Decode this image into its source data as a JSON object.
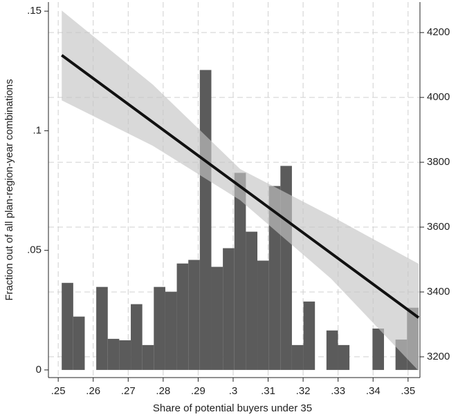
{
  "chart_data": {
    "type": "histogram",
    "xlabel": "Share of potential buyers under 35",
    "ylabel": "Fraction out of all plan-region-year combinations",
    "bins": [
      0.251,
      0.25429,
      0.25758,
      0.26087,
      0.26416,
      0.26745,
      0.27074,
      0.27403,
      0.27732,
      0.28061,
      0.2839,
      0.28719,
      0.29048,
      0.29377,
      0.29706,
      0.30035,
      0.30364,
      0.30693,
      0.31022,
      0.31351,
      0.3168,
      0.32009,
      0.32338,
      0.32667,
      0.32996,
      0.33325,
      0.33654,
      0.33983,
      0.34312,
      0.34641,
      0.3497,
      0.35299
    ],
    "counts": [
      0.0364,
      0.0223,
      0,
      0.0347,
      0.013,
      0.0124,
      0.0275,
      0.0104,
      0.0347,
      0.0327,
      0.0445,
      0.046,
      0.1254,
      0.0431,
      0.0509,
      0.0824,
      0.0578,
      0.0457,
      0.0769,
      0.0853,
      0.0104,
      0.0286,
      0,
      0.0165,
      0.0104,
      0,
      0,
      0.0173,
      0,
      0.0127,
      0.026
    ],
    "color": "#5b5b5b",
    "fit": {
      "x": [
        0.251,
        0.353
      ],
      "values": [
        4130,
        3321
      ],
      "axis": "y2",
      "color": "#111111"
    },
    "ci": {
      "x": [
        0.251,
        0.277,
        0.302,
        0.328,
        0.353
      ],
      "lower": [
        3991,
        3851,
        3683,
        3441,
        3157
      ],
      "upper": [
        4268,
        4040,
        3779,
        3634,
        3487
      ],
      "color": "#c4c4c4"
    },
    "xlim": [
      0.2472,
      0.3534
    ],
    "ylim": [
      -0.0032,
      0.1538
    ],
    "y2lim": [
      3136,
      4294
    ],
    "xticks": [
      {
        "value": 0.25,
        "label": ".25"
      },
      {
        "value": 0.26,
        "label": ".26"
      },
      {
        "value": 0.27,
        "label": ".27"
      },
      {
        "value": 0.28,
        "label": ".28"
      },
      {
        "value": 0.29,
        "label": ".29"
      },
      {
        "value": 0.3,
        "label": ".3"
      },
      {
        "value": 0.31,
        "label": ".31"
      },
      {
        "value": 0.32,
        "label": ".32"
      },
      {
        "value": 0.33,
        "label": ".33"
      },
      {
        "value": 0.34,
        "label": ".34"
      },
      {
        "value": 0.35,
        "label": ".35"
      }
    ],
    "yticks": [
      0,
      {
        "value": 0.05,
        "label": ".05"
      },
      {
        "value": 0.1,
        "label": ".1"
      },
      {
        "value": 0.15,
        "label": ".15"
      }
    ],
    "y2ticks": [
      3200,
      3400,
      3600,
      3800,
      4000,
      4200
    ],
    "grid": true
  }
}
